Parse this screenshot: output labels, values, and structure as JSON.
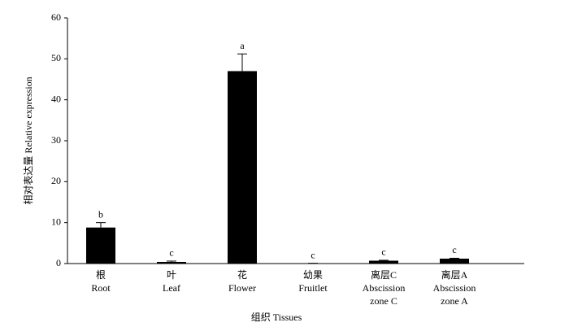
{
  "chart_data": {
    "type": "bar",
    "ylabel": "相对表达量 Relative expression",
    "xlabel": "组织 Tissues",
    "categories": [
      [
        "根",
        "Root"
      ],
      [
        "叶",
        "Leaf"
      ],
      [
        "花",
        "Flower"
      ],
      [
        "幼果",
        "Fruitlet"
      ],
      [
        "离层C",
        "Abscission",
        "zone C"
      ],
      [
        "离层A",
        "Abscission",
        "zone A"
      ]
    ],
    "values": [
      8.8,
      0.4,
      47,
      0.05,
      0.7,
      1.2
    ],
    "errors": [
      1.2,
      0.2,
      4.2,
      0.02,
      0.1,
      0.1
    ],
    "annotations": [
      "b",
      "c",
      "a",
      "c",
      "c",
      "c"
    ],
    "color": "#000000",
    "ylim": [
      0,
      60
    ],
    "yticks": [
      0,
      10,
      20,
      30,
      40,
      50,
      60
    ],
    "grid": false
  }
}
